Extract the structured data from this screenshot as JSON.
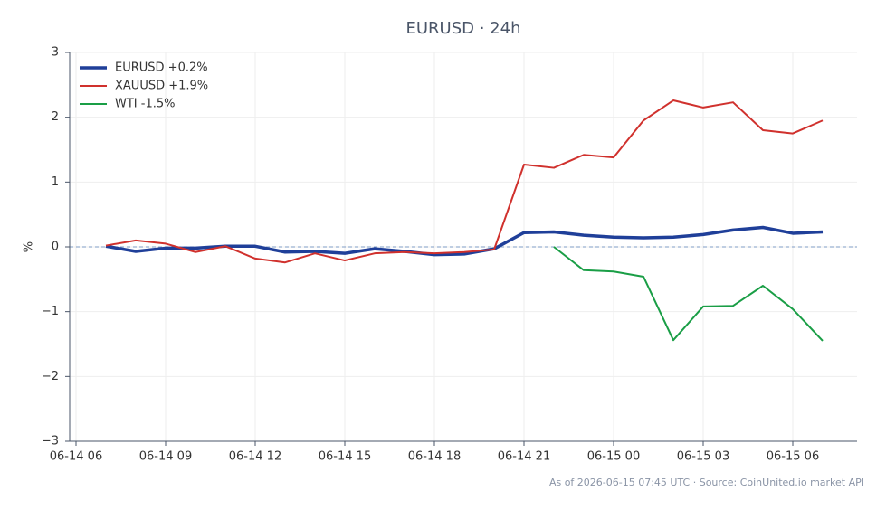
{
  "chart_data": {
    "type": "line",
    "title": "EURUSD · 24h",
    "ylabel": "%",
    "footer": "As of 2026-06-15 07:45 UTC · Source: CoinUnited.io market API",
    "x": [
      "06-14 07",
      "06-14 08",
      "06-14 09",
      "06-14 10",
      "06-14 11",
      "06-14 12",
      "06-14 13",
      "06-14 14",
      "06-14 15",
      "06-14 16",
      "06-14 17",
      "06-14 18",
      "06-14 19",
      "06-14 20",
      "06-14 21",
      "06-14 22",
      "06-14 23",
      "06-15 00",
      "06-15 01",
      "06-15 02",
      "06-15 03",
      "06-15 04",
      "06-15 05",
      "06-15 06",
      "06-15 07"
    ],
    "series": [
      {
        "name": "EURUSD +0.2%",
        "color": "#1f3f99",
        "line_width": 3.5,
        "values": [
          0.01,
          -0.07,
          -0.02,
          -0.02,
          0.01,
          0.01,
          -0.08,
          -0.07,
          -0.1,
          -0.03,
          -0.07,
          -0.12,
          -0.11,
          -0.03,
          0.22,
          0.23,
          0.18,
          0.15,
          0.14,
          0.15,
          0.19,
          0.26,
          0.3,
          0.21,
          0.23
        ]
      },
      {
        "name": "XAUUSD +1.9%",
        "color": "#d0312d",
        "line_width": 2,
        "values": [
          0.02,
          0.1,
          0.05,
          -0.08,
          0.01,
          -0.18,
          -0.24,
          -0.1,
          -0.21,
          -0.1,
          -0.08,
          -0.1,
          -0.08,
          -0.04,
          1.27,
          1.22,
          1.42,
          1.38,
          1.95,
          2.26,
          2.15,
          2.23,
          1.8,
          1.75,
          1.95
        ]
      },
      {
        "name": "WTI -1.5%",
        "color": "#1a9e46",
        "line_width": 2,
        "values": [
          null,
          null,
          null,
          null,
          null,
          null,
          null,
          null,
          null,
          null,
          null,
          null,
          null,
          null,
          null,
          0.0,
          -0.36,
          -0.38,
          -0.46,
          -1.44,
          -0.92,
          -0.91,
          -0.6,
          -0.96,
          -1.45
        ]
      }
    ],
    "xticks": [
      "06-14 06",
      "06-14 09",
      "06-14 12",
      "06-14 15",
      "06-14 18",
      "06-14 21",
      "06-15 00",
      "06-15 03",
      "06-15 06"
    ],
    "ylim": [
      -3,
      3
    ],
    "yticks": [
      {
        "value": -3,
        "label": "−3"
      },
      {
        "value": -2,
        "label": "−2"
      },
      {
        "value": -1,
        "label": "−1"
      },
      0,
      1,
      2,
      3
    ],
    "grid": true,
    "zero_line": true,
    "legend": "upper left"
  }
}
